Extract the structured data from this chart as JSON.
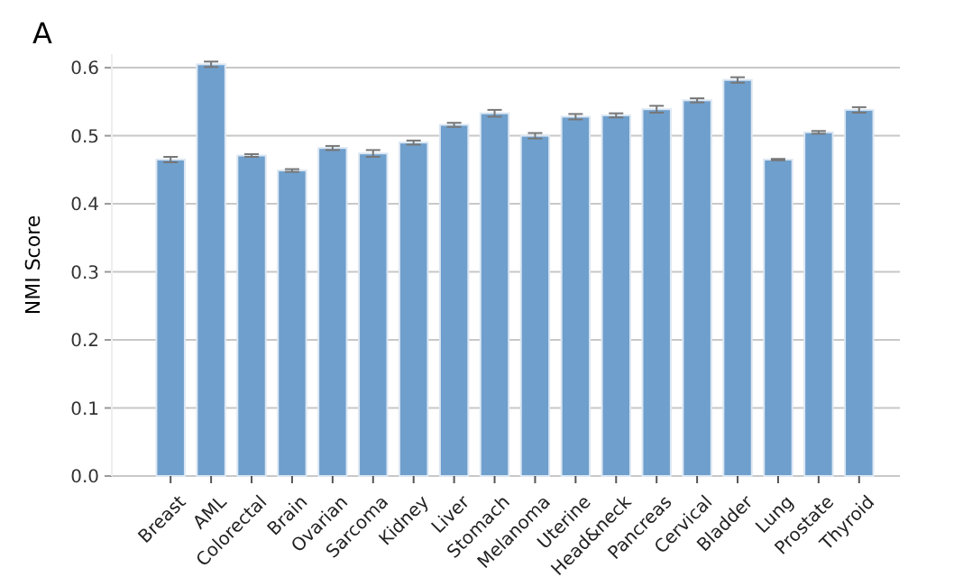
{
  "chart_data": {
    "type": "bar",
    "title": "A",
    "ylabel": "NMI Score",
    "categories": [
      "Breast",
      "AML",
      "Colorectal",
      "Brain",
      "Ovarian",
      "Sarcoma",
      "Kidney",
      "Liver",
      "Stomach",
      "Melanoma",
      "Uterine",
      "Head&neck",
      "Pancreas",
      "Cervical",
      "Bladder",
      "Lung",
      "Prostate",
      "Thyroid"
    ],
    "values": [
      0.465,
      0.605,
      0.471,
      0.449,
      0.482,
      0.474,
      0.49,
      0.516,
      0.533,
      0.5,
      0.528,
      0.53,
      0.539,
      0.552,
      0.582,
      0.465,
      0.505,
      0.538
    ],
    "errors": [
      0.004,
      0.004,
      0.002,
      0.002,
      0.003,
      0.005,
      0.003,
      0.003,
      0.005,
      0.004,
      0.004,
      0.003,
      0.005,
      0.003,
      0.004,
      0.001,
      0.002,
      0.004
    ],
    "color": "#6f9fcc",
    "ylim": [
      0,
      0.62
    ],
    "yticks": [
      {
        "value": 0,
        "label": "0.0"
      },
      0.1,
      0.2,
      0.3,
      0.4,
      0.5,
      0.6
    ],
    "grid": "y"
  }
}
